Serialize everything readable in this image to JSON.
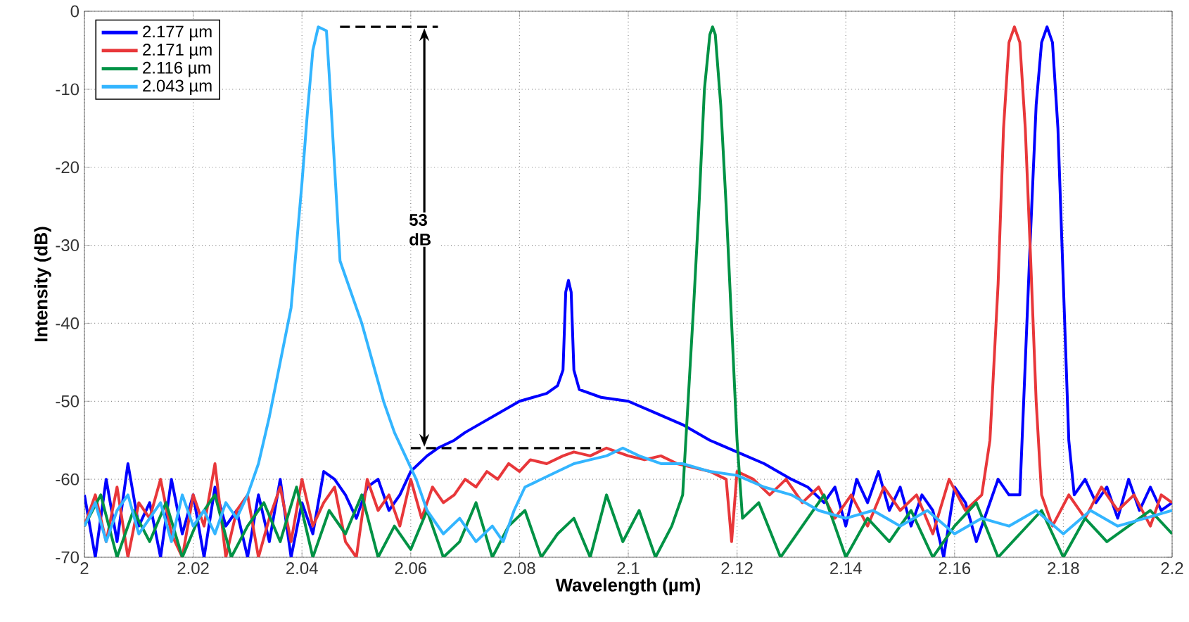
{
  "chart_data": {
    "type": "line",
    "xlabel": "Wavelength (µm)",
    "ylabel": "Intensity (dB)",
    "xlim": [
      2,
      2.2
    ],
    "xticks": [
      2,
      2.02,
      2.04,
      2.06,
      2.08,
      2.1,
      2.12,
      2.14,
      2.16,
      2.18,
      2.2
    ],
    "ylim": [
      -70,
      0
    ],
    "yticks": [
      -70,
      -60,
      -50,
      -40,
      -30,
      -20,
      -10,
      0
    ],
    "grid": true,
    "legend": "top left",
    "line_style": "solid",
    "annotations": [
      {
        "text": "53 dB",
        "x": 2.0625,
        "y": -28
      }
    ],
    "series": [
      {
        "name": "2.177 µm",
        "color": "#0000ff",
        "x": [
          2.0,
          2.002,
          2.004,
          2.006,
          2.008,
          2.01,
          2.012,
          2.014,
          2.016,
          2.018,
          2.02,
          2.022,
          2.024,
          2.026,
          2.028,
          2.03,
          2.032,
          2.034,
          2.036,
          2.038,
          2.04,
          2.042,
          2.044,
          2.046,
          2.048,
          2.05,
          2.052,
          2.054,
          2.056,
          2.058,
          2.06,
          2.063,
          2.065,
          2.068,
          2.07,
          2.075,
          2.08,
          2.085,
          2.087,
          2.088,
          2.0885,
          2.089,
          2.0895,
          2.09,
          2.091,
          2.095,
          2.1,
          2.105,
          2.11,
          2.115,
          2.12,
          2.125,
          2.13,
          2.133,
          2.136,
          2.138,
          2.14,
          2.142,
          2.144,
          2.146,
          2.148,
          2.15,
          2.152,
          2.154,
          2.156,
          2.158,
          2.16,
          2.162,
          2.164,
          2.166,
          2.168,
          2.17,
          2.172,
          2.173,
          2.174,
          2.175,
          2.176,
          2.177,
          2.178,
          2.179,
          2.18,
          2.181,
          2.182,
          2.184,
          2.186,
          2.188,
          2.19,
          2.192,
          2.194,
          2.196,
          2.198,
          2.2
        ],
        "values": [
          -62,
          -70,
          -60,
          -68,
          -58,
          -66,
          -63,
          -70,
          -60,
          -67,
          -62,
          -70,
          -61,
          -66,
          -64,
          -70,
          -62,
          -68,
          -60,
          -70,
          -63,
          -67,
          -59,
          -60,
          -62,
          -65,
          -61,
          -60,
          -64,
          -62,
          -59,
          -57,
          -56,
          -55,
          -54,
          -52,
          -50,
          -49,
          -48,
          -46,
          -36,
          -34.5,
          -36,
          -46,
          -48.5,
          -49.5,
          -50,
          -51.5,
          -53,
          -55,
          -56.5,
          -58,
          -60,
          -61,
          -63,
          -61,
          -66,
          -60,
          -63,
          -59,
          -64,
          -61,
          -66,
          -62,
          -64,
          -70,
          -61,
          -63,
          -68,
          -64,
          -60,
          -62,
          -62,
          -45,
          -28,
          -12,
          -4,
          -2,
          -4,
          -15,
          -35,
          -55,
          -62,
          -60,
          -63,
          -61,
          -65,
          -60,
          -64,
          -61,
          -64,
          -63
        ]
      },
      {
        "name": "2.171 µm",
        "color": "#e8373a",
        "x": [
          2.0,
          2.002,
          2.004,
          2.006,
          2.008,
          2.01,
          2.012,
          2.014,
          2.016,
          2.018,
          2.02,
          2.022,
          2.024,
          2.026,
          2.028,
          2.03,
          2.032,
          2.034,
          2.036,
          2.038,
          2.04,
          2.042,
          2.044,
          2.046,
          2.048,
          2.05,
          2.052,
          2.054,
          2.056,
          2.058,
          2.06,
          2.062,
          2.064,
          2.066,
          2.068,
          2.07,
          2.072,
          2.074,
          2.076,
          2.078,
          2.08,
          2.082,
          2.085,
          2.088,
          2.09,
          2.093,
          2.096,
          2.1,
          2.103,
          2.106,
          2.109,
          2.112,
          2.115,
          2.118,
          2.119,
          2.12,
          2.123,
          2.126,
          2.129,
          2.132,
          2.135,
          2.138,
          2.141,
          2.144,
          2.147,
          2.15,
          2.153,
          2.156,
          2.159,
          2.162,
          2.165,
          2.1665,
          2.168,
          2.169,
          2.17,
          2.171,
          2.172,
          2.173,
          2.174,
          2.175,
          2.176,
          2.178,
          2.181,
          2.184,
          2.187,
          2.19,
          2.193,
          2.196,
          2.198,
          2.2
        ],
        "values": [
          -66,
          -62,
          -68,
          -61,
          -70,
          -63,
          -65,
          -60,
          -67,
          -70,
          -62,
          -66,
          -58,
          -70,
          -64,
          -62,
          -70,
          -65,
          -61,
          -68,
          -60,
          -66,
          -63,
          -61,
          -68,
          -70,
          -60,
          -64,
          -62,
          -66,
          -60,
          -65,
          -61,
          -63,
          -62,
          -60,
          -61,
          -59,
          -60,
          -58,
          -59,
          -57.5,
          -58,
          -57,
          -56.5,
          -57,
          -56,
          -57,
          -57.5,
          -57,
          -58,
          -58.5,
          -59,
          -60,
          -68,
          -59,
          -60,
          -62,
          -60,
          -63,
          -61,
          -65,
          -62,
          -66,
          -61,
          -64,
          -62,
          -67,
          -60,
          -64,
          -62,
          -55,
          -35,
          -15,
          -4,
          -2,
          -4,
          -15,
          -32,
          -50,
          -62,
          -66,
          -62,
          -65,
          -61,
          -64,
          -62,
          -66,
          -62,
          -63
        ]
      },
      {
        "name": "2.116 µm",
        "color": "#009245",
        "x": [
          2.0,
          2.003,
          2.006,
          2.009,
          2.012,
          2.015,
          2.018,
          2.021,
          2.024,
          2.027,
          2.03,
          2.033,
          2.036,
          2.039,
          2.042,
          2.045,
          2.048,
          2.051,
          2.054,
          2.057,
          2.06,
          2.063,
          2.066,
          2.069,
          2.072,
          2.075,
          2.078,
          2.081,
          2.084,
          2.087,
          2.09,
          2.093,
          2.096,
          2.099,
          2.102,
          2.105,
          2.108,
          2.11,
          2.111,
          2.112,
          2.113,
          2.114,
          2.115,
          2.1155,
          2.116,
          2.117,
          2.118,
          2.119,
          2.12,
          2.121,
          2.124,
          2.128,
          2.132,
          2.136,
          2.14,
          2.144,
          2.148,
          2.152,
          2.156,
          2.16,
          2.164,
          2.168,
          2.172,
          2.176,
          2.18,
          2.184,
          2.188,
          2.192,
          2.196,
          2.2
        ],
        "values": [
          -66,
          -62,
          -70,
          -64,
          -68,
          -63,
          -70,
          -65,
          -62,
          -70,
          -66,
          -63,
          -68,
          -61,
          -70,
          -64,
          -67,
          -62,
          -70,
          -66,
          -69,
          -64,
          -70,
          -68,
          -63,
          -70,
          -66,
          -64,
          -70,
          -67,
          -65,
          -70,
          -62,
          -68,
          -64,
          -70,
          -66,
          -62,
          -50,
          -38,
          -25,
          -10,
          -3,
          -2,
          -3,
          -12,
          -25,
          -40,
          -55,
          -65,
          -63,
          -70,
          -66,
          -62,
          -70,
          -65,
          -68,
          -64,
          -70,
          -66,
          -63,
          -70,
          -67,
          -64,
          -70,
          -65,
          -68,
          -66,
          -64,
          -67
        ]
      },
      {
        "name": "2.043 µm",
        "color": "#33b5ff",
        "x": [
          2.0,
          2.002,
          2.004,
          2.006,
          2.008,
          2.01,
          2.012,
          2.014,
          2.016,
          2.018,
          2.02,
          2.022,
          2.024,
          2.026,
          2.028,
          2.03,
          2.032,
          2.034,
          2.036,
          2.038,
          2.039,
          2.04,
          2.041,
          2.042,
          2.043,
          2.0445,
          2.045,
          2.046,
          2.047,
          2.049,
          2.051,
          2.053,
          2.055,
          2.057,
          2.059,
          2.061,
          2.063,
          2.066,
          2.069,
          2.072,
          2.075,
          2.077,
          2.079,
          2.081,
          2.084,
          2.087,
          2.09,
          2.093,
          2.096,
          2.099,
          2.102,
          2.106,
          2.11,
          2.115,
          2.12,
          2.125,
          2.13,
          2.135,
          2.14,
          2.145,
          2.15,
          2.155,
          2.16,
          2.165,
          2.17,
          2.175,
          2.18,
          2.185,
          2.19,
          2.195,
          2.2
        ],
        "values": [
          -66,
          -63,
          -68,
          -64,
          -62,
          -67,
          -65,
          -63,
          -68,
          -62,
          -66,
          -64,
          -67,
          -63,
          -65,
          -62,
          -58,
          -52,
          -45,
          -38,
          -30,
          -22,
          -13,
          -5,
          -2,
          -2.5,
          -8,
          -20,
          -32,
          -36,
          -40,
          -45,
          -50,
          -54,
          -57,
          -60,
          -64,
          -67,
          -65,
          -68,
          -66,
          -68,
          -64,
          -61,
          -60,
          -59,
          -58,
          -57.5,
          -57,
          -56,
          -57,
          -58,
          -58,
          -59,
          -59.5,
          -61,
          -62,
          -64,
          -65,
          -64,
          -66,
          -64,
          -67,
          -65,
          -66,
          -64,
          -67,
          -64,
          -66,
          -65,
          -64
        ]
      },
      {
        "color": "#000000",
        "line_style": "dashed",
        "x": [
          2.047,
          2.065
        ],
        "values": [
          -2,
          -2
        ]
      },
      {
        "color": "#000000",
        "line_style": "dashed",
        "x": [
          2.06,
          2.095
        ],
        "values": [
          -56,
          -56
        ]
      }
    ]
  }
}
